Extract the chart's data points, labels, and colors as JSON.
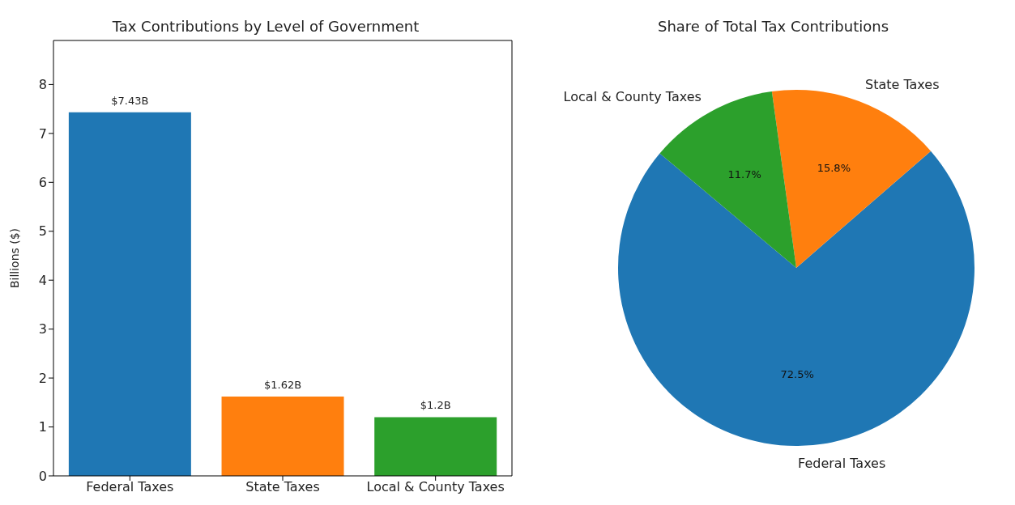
{
  "chart_data": [
    {
      "type": "bar",
      "title": "Tax Contributions by Level of Government",
      "ylabel": "Billions ($)",
      "categories": [
        "Federal Taxes",
        "State Taxes",
        "Local & County Taxes"
      ],
      "values": [
        7.43,
        1.62,
        1.2
      ],
      "colors": [
        "#1f77b4",
        "#ff7f0e",
        "#2ca02c"
      ],
      "value_labels": [
        "$7.43B",
        "$1.62B",
        "$1.2B"
      ],
      "ylim": [
        0,
        8.9
      ],
      "yticks": [
        0,
        1,
        2,
        3,
        4,
        5,
        6,
        7,
        8
      ]
    },
    {
      "type": "pie",
      "title": "Share of Total Tax Contributions",
      "categories": [
        "Federal Taxes",
        "State Taxes",
        "Local & County Taxes"
      ],
      "values": [
        72.5,
        15.8,
        11.7
      ],
      "colors": [
        "#1f77b4",
        "#ff7f0e",
        "#2ca02c"
      ],
      "value_labels": [
        "72.5%",
        "15.8%",
        "11.7%"
      ]
    }
  ]
}
